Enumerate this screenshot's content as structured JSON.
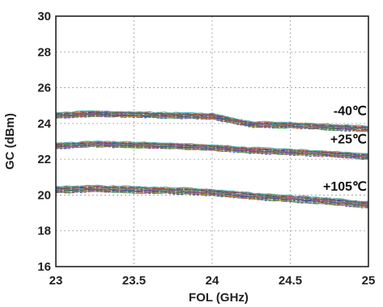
{
  "chart_data": {
    "type": "line",
    "title": "",
    "xlabel": "FOL (GHz)",
    "ylabel": "GC (dBm)",
    "xlim": [
      23,
      25
    ],
    "ylim": [
      16,
      30
    ],
    "xticks": [
      "23",
      "23.5",
      "24",
      "24.5",
      "25"
    ],
    "yticks": [
      "16",
      "18",
      "20",
      "22",
      "24",
      "26",
      "28",
      "30"
    ],
    "grid": true,
    "legend": "none",
    "series_colors": [
      "#1f3fbf",
      "#2e9a3a",
      "#c23a3a",
      "#8a3fb0",
      "#d49a1e",
      "#2aa7b5",
      "#6b6b6b",
      "#b5567d",
      "#3b7d3b",
      "#7a5230"
    ],
    "series": [
      {
        "name": "-40℃",
        "x": [
          23,
          23.25,
          23.5,
          23.75,
          24,
          24.25,
          24.5,
          24.75,
          25
        ],
        "y": [
          24.45,
          24.55,
          24.5,
          24.45,
          24.4,
          23.95,
          23.9,
          23.8,
          23.7
        ],
        "spread": 0.3
      },
      {
        "name": "+25℃",
        "x": [
          23,
          23.25,
          23.5,
          23.75,
          24,
          24.25,
          24.5,
          24.75,
          25
        ],
        "y": [
          22.75,
          22.85,
          22.8,
          22.75,
          22.65,
          22.5,
          22.4,
          22.3,
          22.15
        ],
        "spread": 0.3
      },
      {
        "name": "+105℃",
        "x": [
          23,
          23.25,
          23.5,
          23.75,
          24,
          24.25,
          24.5,
          24.75,
          25
        ],
        "y": [
          20.3,
          20.35,
          20.3,
          20.25,
          20.15,
          19.95,
          19.8,
          19.65,
          19.45
        ],
        "spread": 0.35
      }
    ]
  }
}
